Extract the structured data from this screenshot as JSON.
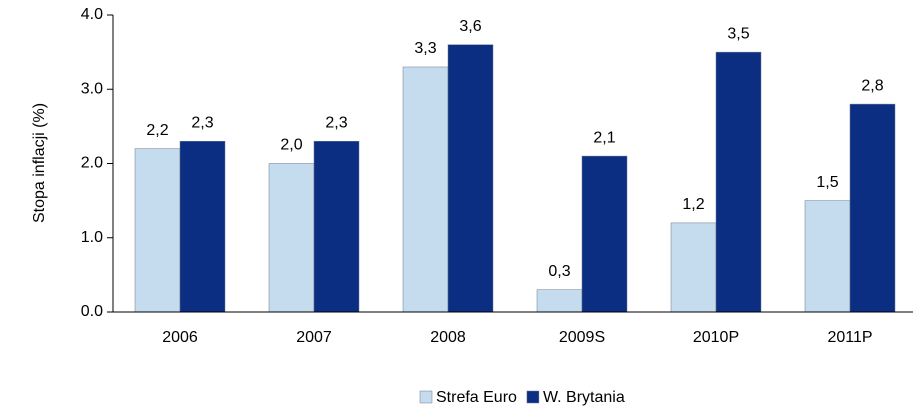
{
  "chart_data": {
    "type": "bar",
    "y_label": "Stopa inflacji (%)",
    "categories": [
      "2006",
      "2007",
      "2008",
      "2009S",
      "2010P",
      "2011P"
    ],
    "series": [
      {
        "name": "Strefa Euro",
        "color": "#c5dbee",
        "values": [
          2.2,
          2.0,
          3.3,
          0.3,
          1.2,
          1.5
        ],
        "value_labels": [
          "2,2",
          "2,0",
          "3,3",
          "0,3",
          "1,2",
          "1,5"
        ]
      },
      {
        "name": "W. Brytania",
        "color": "#0b2d82",
        "values": [
          2.3,
          2.3,
          3.6,
          2.1,
          3.5,
          2.8
        ],
        "value_labels": [
          "2,3",
          "2,3",
          "3,6",
          "2,1",
          "3,5",
          "2,8"
        ]
      }
    ],
    "ylim": [
      0,
      4
    ],
    "yticks": [
      {
        "value": 0,
        "label": "0.0"
      },
      {
        "value": 1,
        "label": "1.0"
      },
      {
        "value": 2,
        "label": "2.0"
      },
      {
        "value": 3,
        "label": "3.0"
      },
      {
        "value": 4,
        "label": "4.0"
      }
    ],
    "legend": "bottom"
  }
}
